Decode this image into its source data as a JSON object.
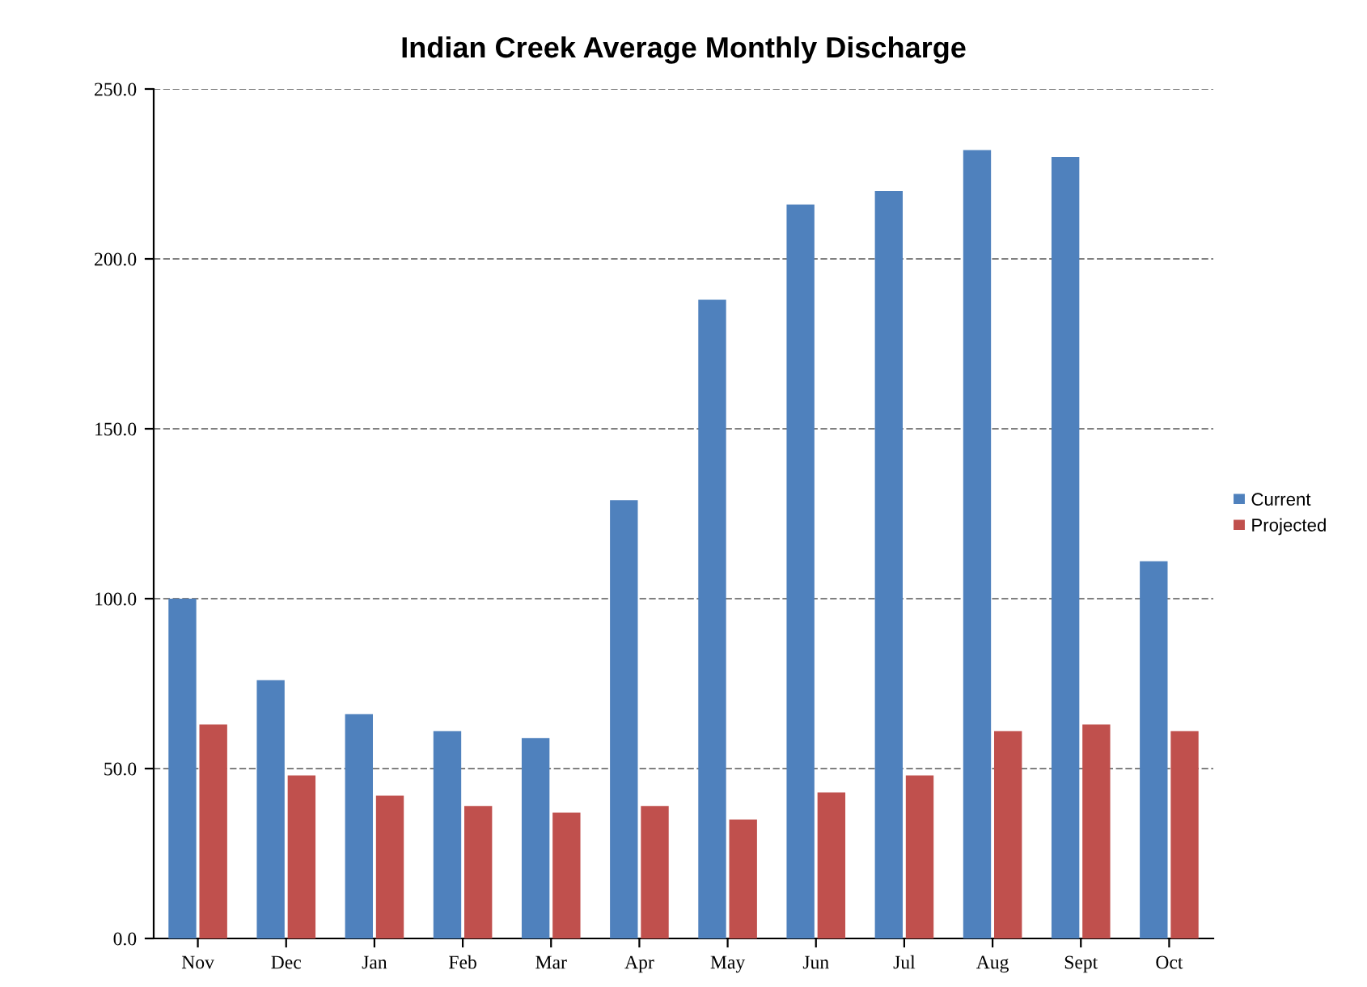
{
  "chart_data": {
    "type": "bar",
    "title": "Indian Creek Average Monthly Discharge",
    "categories": [
      "Nov",
      "Dec",
      "Jan",
      "Feb",
      "Mar",
      "Apr",
      "May",
      "Jun",
      "Jul",
      "Aug",
      "Sept",
      "Oct"
    ],
    "series": [
      {
        "name": "Current",
        "color": "#4f81bd",
        "values": [
          100,
          76,
          66,
          61,
          59,
          129,
          188,
          216,
          220,
          232,
          230,
          111
        ]
      },
      {
        "name": "Projected",
        "color": "#c0504d",
        "values": [
          63,
          48,
          42,
          39,
          37,
          39,
          35,
          43,
          48,
          61,
          63,
          61
        ]
      }
    ],
    "ylim": [
      0,
      250
    ],
    "yticks": [
      {
        "value": 0,
        "label": "0.0"
      },
      {
        "value": 50,
        "label": "50.0"
      },
      {
        "value": 100,
        "label": "100.0"
      },
      {
        "value": 150,
        "label": "150.0"
      },
      {
        "value": 200,
        "label": "200.0"
      },
      {
        "value": 250,
        "label": "250.0"
      }
    ],
    "grid": "y",
    "legend": "right"
  }
}
